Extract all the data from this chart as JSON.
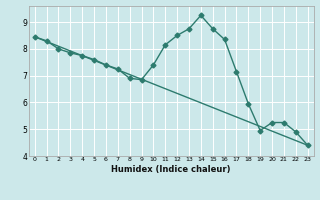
{
  "title": "",
  "xlabel": "Humidex (Indice chaleur)",
  "ylabel": "",
  "bg_color": "#cce8ea",
  "grid_color": "#ffffff",
  "line_color": "#2d7b6e",
  "x_data": [
    0,
    1,
    2,
    3,
    4,
    5,
    6,
    7,
    8,
    9,
    10,
    11,
    12,
    13,
    14,
    15,
    16,
    17,
    18,
    19,
    20,
    21,
    22,
    23
  ],
  "y_curve": [
    8.45,
    8.3,
    8.0,
    7.85,
    7.75,
    7.6,
    7.4,
    7.25,
    6.9,
    6.85,
    7.4,
    8.15,
    8.5,
    8.75,
    9.25,
    8.75,
    8.35,
    7.15,
    5.95,
    4.95,
    5.25,
    5.25,
    4.9,
    4.4
  ],
  "xlim": [
    -0.5,
    23.5
  ],
  "ylim": [
    4.0,
    9.6
  ],
  "yticks": [
    4,
    5,
    6,
    7,
    8,
    9
  ],
  "xtick_labels": [
    "0",
    "1",
    "2",
    "3",
    "4",
    "5",
    "6",
    "7",
    "8",
    "9",
    "10",
    "11",
    "12",
    "13",
    "14",
    "15",
    "16",
    "17",
    "18",
    "19",
    "20",
    "21",
    "22",
    "23"
  ],
  "marker_size": 2.5,
  "line_width": 1.0
}
